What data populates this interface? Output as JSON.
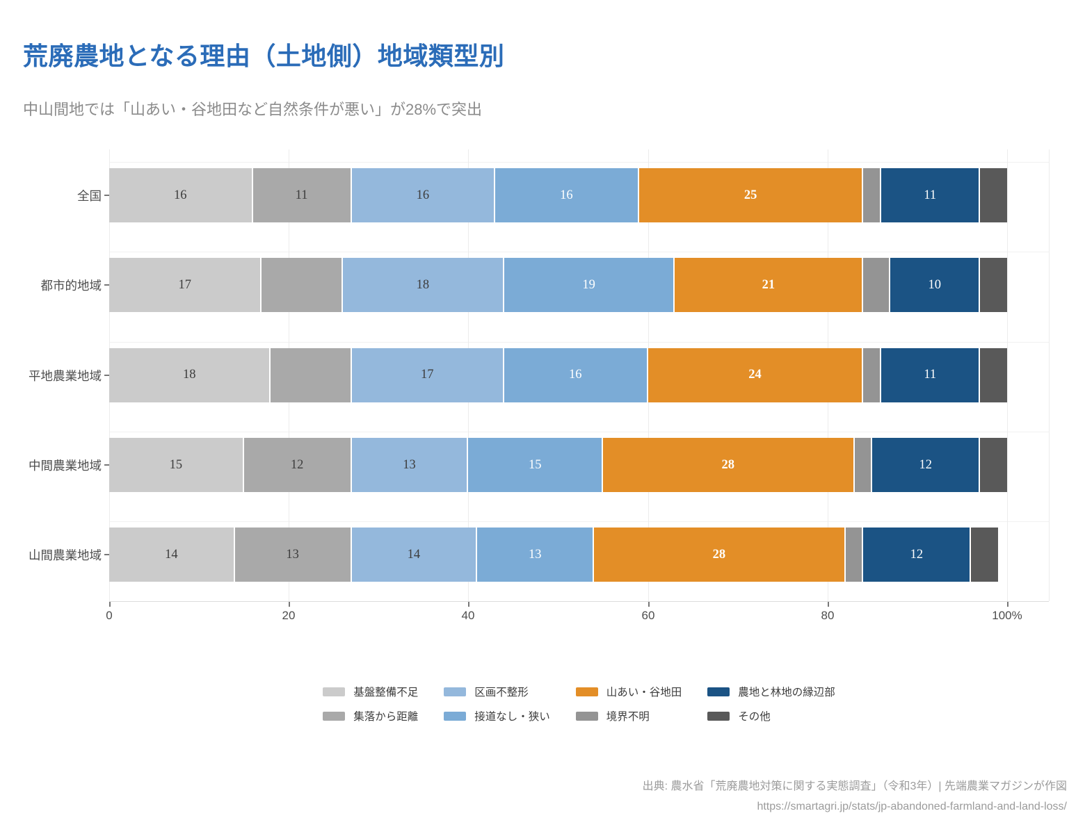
{
  "header": {
    "title": "荒廃農地となる理由（土地側）地域類型別",
    "subtitle": "中山間地では「山あい・谷地田など自然条件が悪い」が28%で突出"
  },
  "chart_data": {
    "type": "bar",
    "orientation": "horizontal",
    "stacked": true,
    "unit": "%",
    "title": "荒廃農地となる理由（土地側）地域類型別",
    "categories": [
      "全国",
      "都市的地域",
      "平地農業地域",
      "中間農業地域",
      "山間農業地域"
    ],
    "series": [
      {
        "name": "基盤整備不足",
        "color": "#cbcbcb",
        "label_color": "#3d3d3d",
        "bold": false,
        "values": [
          16,
          17,
          18,
          15,
          14
        ]
      },
      {
        "name": "集落から距離",
        "color": "#a9a9a9",
        "label_color": "#3d3d3d",
        "bold": false,
        "values": [
          11,
          9,
          9,
          12,
          13
        ]
      },
      {
        "name": "区画不整形",
        "color": "#94b8dc",
        "label_color": "#3d3d3d",
        "bold": false,
        "values": [
          16,
          18,
          17,
          13,
          14
        ]
      },
      {
        "name": "接道なし・狭い",
        "color": "#7babd6",
        "label_color": "#ffffff",
        "bold": false,
        "values": [
          16,
          19,
          16,
          15,
          13
        ]
      },
      {
        "name": "山あい・谷地田",
        "color": "#e38e27",
        "label_color": "#ffffff",
        "bold": true,
        "values": [
          25,
          21,
          24,
          28,
          28
        ]
      },
      {
        "name": "境界不明",
        "color": "#949494",
        "label_color": "#3d3d3d",
        "bold": false,
        "values": [
          2,
          3,
          2,
          2,
          2
        ]
      },
      {
        "name": "農地と林地の縁辺部",
        "color": "#1b5384",
        "label_color": "#ffffff",
        "bold": false,
        "values": [
          11,
          10,
          11,
          12,
          12
        ]
      },
      {
        "name": "その他",
        "color": "#595959",
        "label_color": "#ffffff",
        "bold": false,
        "values": [
          3,
          3,
          3,
          3,
          3
        ]
      }
    ],
    "xlim": [
      0,
      100
    ],
    "x_ticks": [
      {
        "value": 0,
        "label": "0"
      },
      {
        "value": 20,
        "label": "20"
      },
      {
        "value": 40,
        "label": "40"
      },
      {
        "value": 60,
        "label": "60"
      },
      {
        "value": 80,
        "label": "80"
      },
      {
        "value": 100,
        "label": "100%"
      }
    ],
    "value_label_min": 10,
    "grid": true,
    "legend_position": "bottom"
  },
  "footer": {
    "source": "出典: 農水省「荒廃農地対策に関する実態調査」（令和3年）| 先端農業マガジンが作図",
    "url": "https://smartagri.jp/stats/jp-abandoned-farmland-and-land-loss/"
  }
}
